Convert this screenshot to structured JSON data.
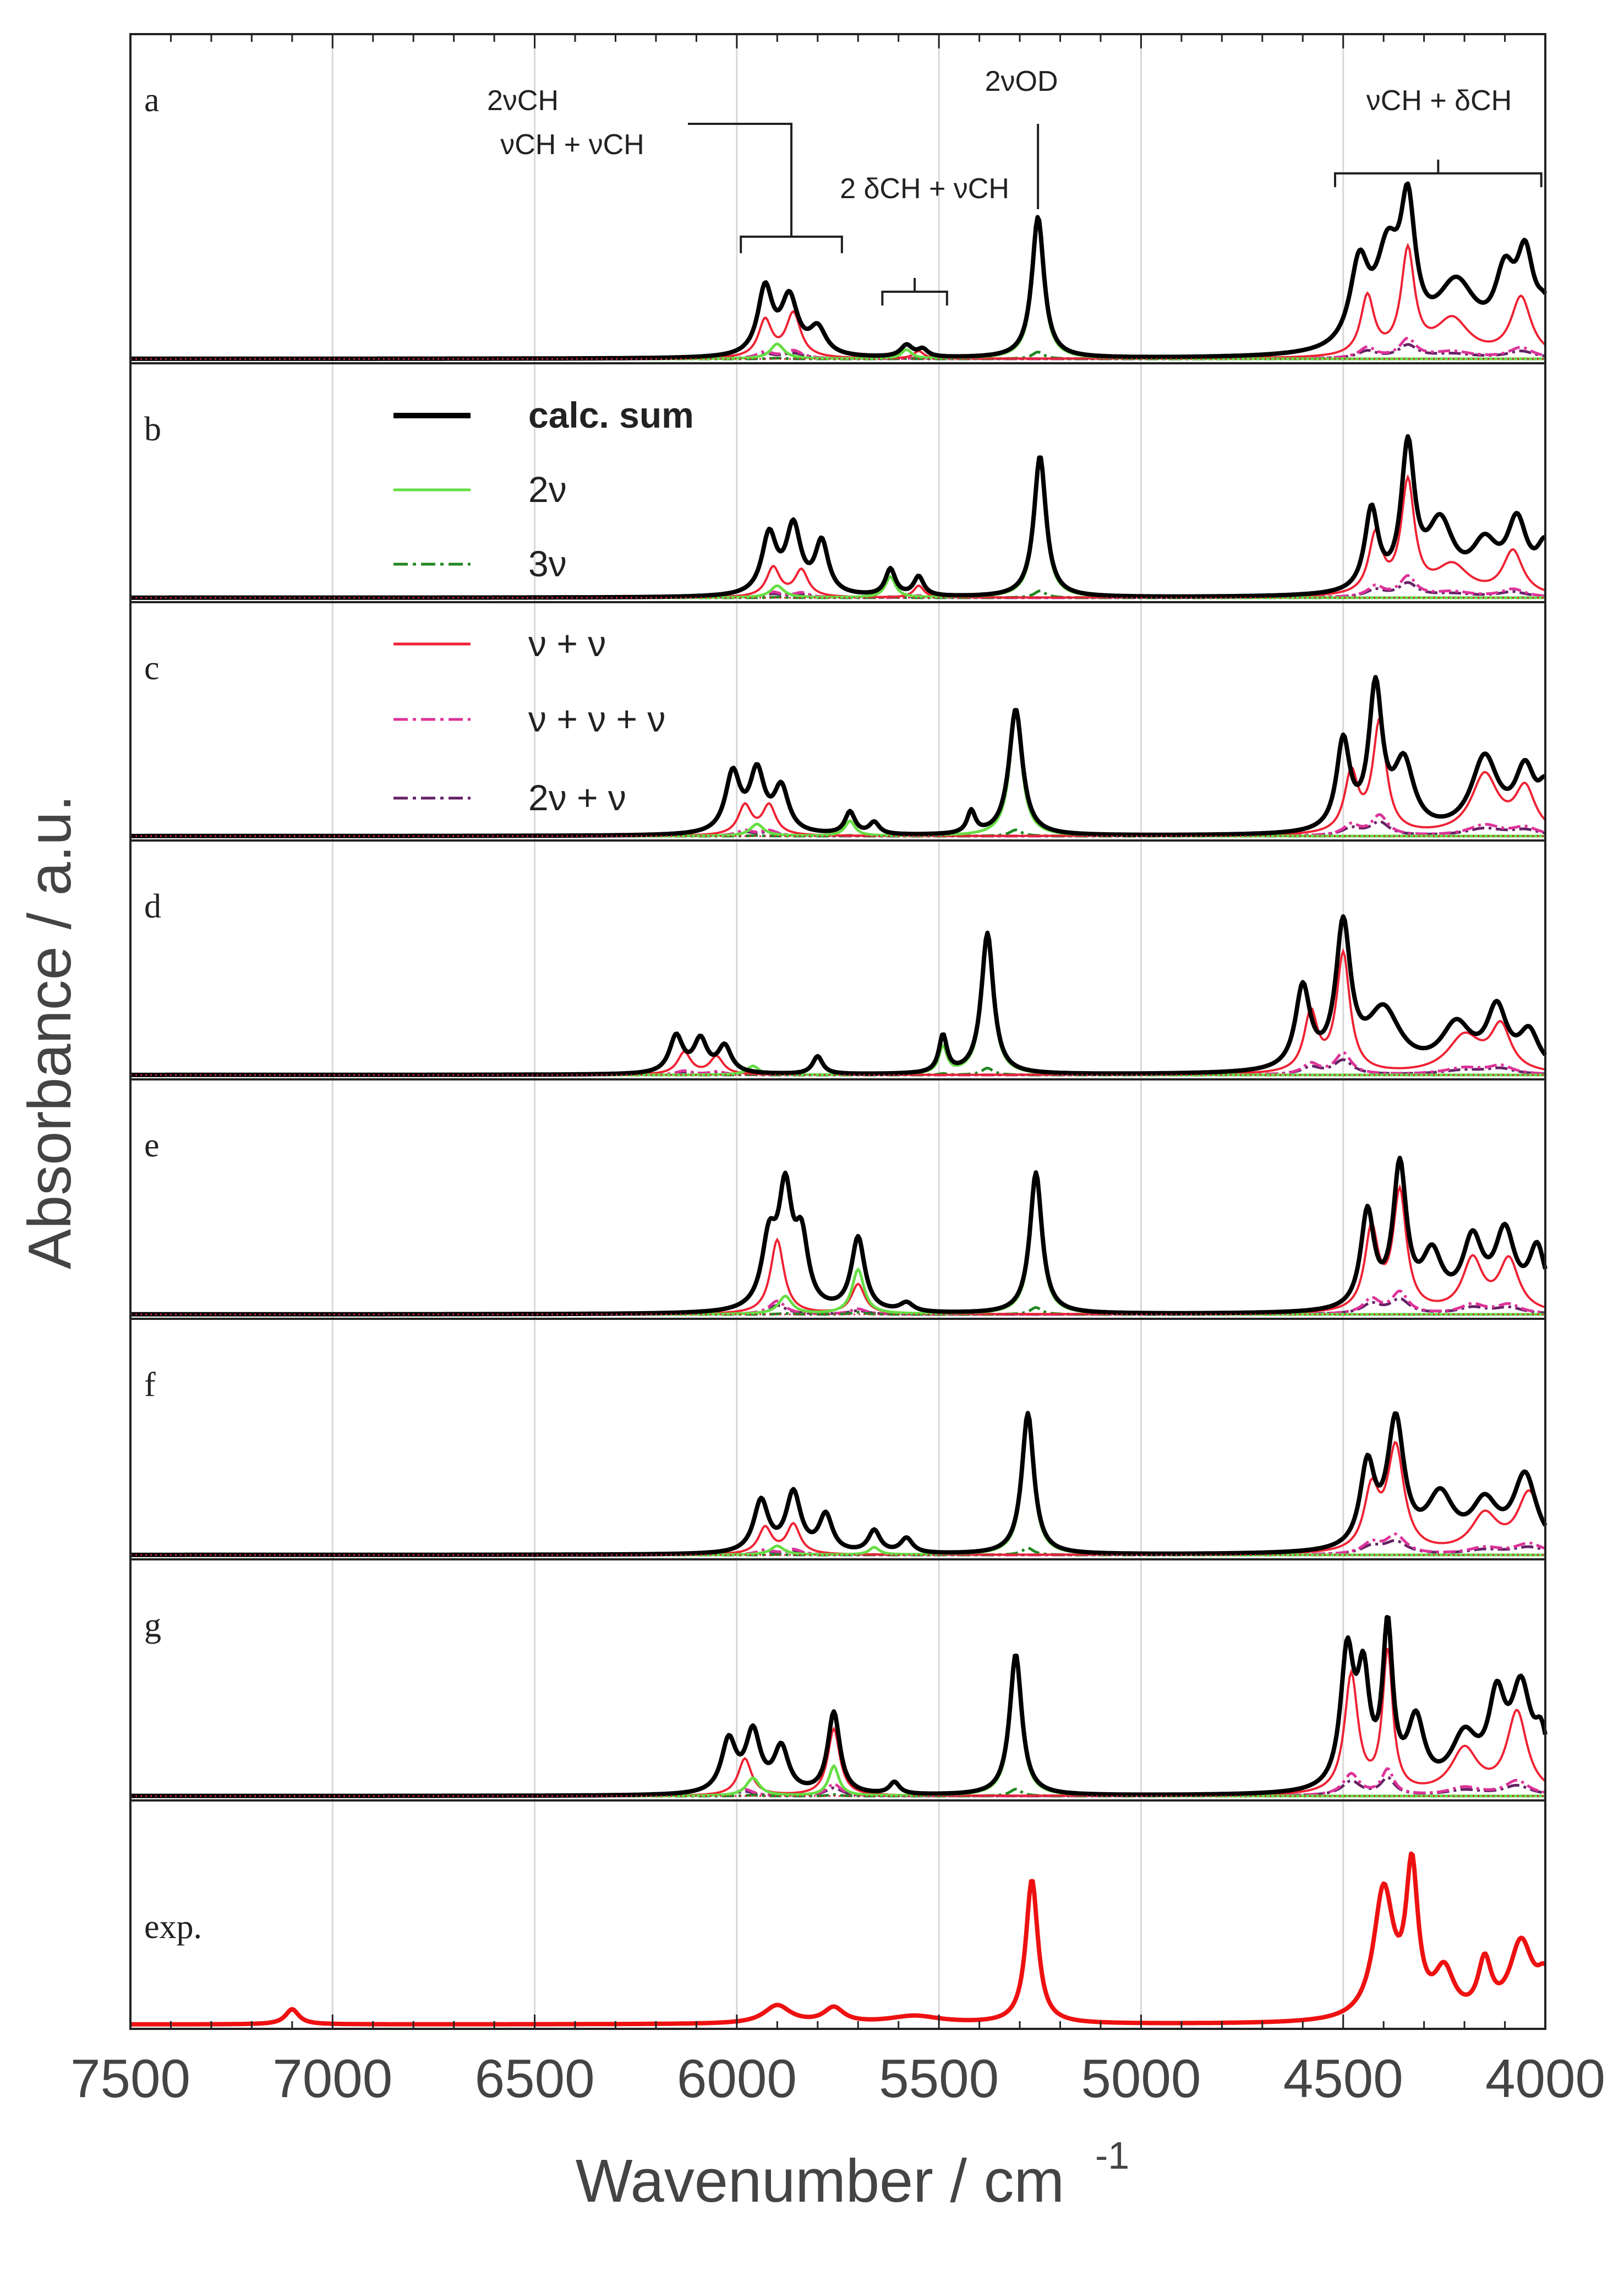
{
  "chart_data": {
    "type": "line",
    "title": "",
    "xlabel": "Wavenumber / cm",
    "xlabel_sup": "-1",
    "ylabel": "Absorbance / a.u.",
    "xlim": [
      7500,
      4000
    ],
    "x_tick_labels": [
      "7500",
      "7000",
      "6500",
      "6000",
      "5500",
      "5000",
      "4500",
      "4000"
    ],
    "x_ticks": [
      7500,
      7000,
      6500,
      6000,
      5500,
      5000,
      4500,
      4000
    ],
    "grid": true,
    "legend": {
      "position": "upper-left (inside panel b-c)",
      "entries": [
        {
          "label": "calc. sum",
          "color": "#000000",
          "style": "solid-thick"
        },
        {
          "label": "2ν",
          "color": "#66dd44",
          "style": "solid"
        },
        {
          "label": "3ν",
          "color": "#228822",
          "style": "dashdot"
        },
        {
          "label": "ν + ν",
          "color": "#ee2233",
          "style": "solid"
        },
        {
          "label": "ν + ν + ν",
          "color": "#dd3399",
          "style": "dashdot"
        },
        {
          "label": "2ν + ν",
          "color": "#662266",
          "style": "dashdot"
        }
      ]
    },
    "annotations": [
      {
        "lines": [
          "2νCH",
          "νCH + νCH"
        ],
        "range_cm": [
          5990,
          5740
        ]
      },
      {
        "lines": [
          "2 δCH + νCH"
        ],
        "range_cm": [
          5640,
          5480
        ]
      },
      {
        "lines": [
          "2νOD"
        ],
        "range_cm": [
          5255,
          5255
        ]
      },
      {
        "lines": [
          "νCH + δCH"
        ],
        "range_cm": [
          4520,
          4010
        ]
      }
    ],
    "panels": [
      {
        "label": "a",
        "sum_peaks": [
          [
            5930,
            0.45,
            22
          ],
          [
            5870,
            0.38,
            25
          ],
          [
            5800,
            0.18,
            25
          ],
          [
            5580,
            0.08,
            18
          ],
          [
            5540,
            0.05,
            15
          ],
          [
            5255,
            0.95,
            18
          ],
          [
            4460,
            0.55,
            28
          ],
          [
            4390,
            0.6,
            35
          ],
          [
            4340,
            0.85,
            22
          ],
          [
            4220,
            0.45,
            60
          ],
          [
            4100,
            0.45,
            30
          ],
          [
            4050,
            0.55,
            25
          ],
          [
            4000,
            0.25,
            30
          ]
        ],
        "combo_peaks": [
          [
            5930,
            0.25,
            20
          ],
          [
            5860,
            0.3,
            22
          ],
          [
            5550,
            0.05,
            15
          ],
          [
            4440,
            0.4,
            20
          ],
          [
            4340,
            0.7,
            20
          ],
          [
            4230,
            0.25,
            50
          ],
          [
            4060,
            0.4,
            30
          ]
        ],
        "ov2_peaks": [
          [
            5255,
            0.93,
            17
          ],
          [
            5580,
            0.06,
            15
          ],
          [
            5900,
            0.1,
            20
          ]
        ]
      },
      {
        "label": "b",
        "sum_peaks": [
          [
            5920,
            0.4,
            22
          ],
          [
            5860,
            0.45,
            22
          ],
          [
            5790,
            0.35,
            20
          ],
          [
            5620,
            0.18,
            15
          ],
          [
            5550,
            0.13,
            15
          ],
          [
            5250,
            0.95,
            18
          ],
          [
            4430,
            0.55,
            20
          ],
          [
            4340,
            0.95,
            20
          ],
          [
            4260,
            0.45,
            40
          ],
          [
            4150,
            0.3,
            40
          ],
          [
            4070,
            0.45,
            30
          ],
          [
            4000,
            0.3,
            25
          ]
        ],
        "combo_peaks": [
          [
            5910,
            0.2,
            20
          ],
          [
            5840,
            0.18,
            20
          ],
          [
            5550,
            0.08,
            15
          ],
          [
            4420,
            0.4,
            20
          ],
          [
            4340,
            0.75,
            20
          ],
          [
            4230,
            0.2,
            50
          ],
          [
            4080,
            0.3,
            30
          ]
        ],
        "ov2_peaks": [
          [
            5250,
            0.93,
            17
          ],
          [
            5620,
            0.14,
            15
          ],
          [
            5900,
            0.08,
            20
          ]
        ]
      },
      {
        "label": "c",
        "sum_peaks": [
          [
            6010,
            0.4,
            22
          ],
          [
            5950,
            0.4,
            22
          ],
          [
            5890,
            0.3,
            22
          ],
          [
            5720,
            0.15,
            15
          ],
          [
            5660,
            0.08,
            15
          ],
          [
            5420,
            0.15,
            12
          ],
          [
            5310,
            0.85,
            20
          ],
          [
            4500,
            0.6,
            20
          ],
          [
            4420,
            0.95,
            20
          ],
          [
            4350,
            0.45,
            30
          ],
          [
            4150,
            0.5,
            40
          ],
          [
            4050,
            0.4,
            30
          ],
          [
            4000,
            0.25,
            20
          ]
        ],
        "combo_peaks": [
          [
            5980,
            0.2,
            20
          ],
          [
            5920,
            0.2,
            20
          ],
          [
            4480,
            0.4,
            20
          ],
          [
            4410,
            0.75,
            20
          ],
          [
            4150,
            0.4,
            40
          ],
          [
            4050,
            0.3,
            30
          ]
        ],
        "ov2_peaks": [
          [
            5310,
            0.83,
            18
          ],
          [
            5720,
            0.1,
            15
          ],
          [
            5950,
            0.08,
            20
          ]
        ]
      },
      {
        "label": "d",
        "sum_peaks": [
          [
            6150,
            0.25,
            20
          ],
          [
            6090,
            0.22,
            20
          ],
          [
            6030,
            0.18,
            20
          ],
          [
            5800,
            0.12,
            15
          ],
          [
            5490,
            0.25,
            12
          ],
          [
            5380,
            0.95,
            18
          ],
          [
            4600,
            0.55,
            22
          ],
          [
            4500,
            0.95,
            22
          ],
          [
            4400,
            0.4,
            50
          ],
          [
            4220,
            0.3,
            45
          ],
          [
            4120,
            0.4,
            30
          ],
          [
            4040,
            0.25,
            30
          ]
        ],
        "combo_peaks": [
          [
            6130,
            0.15,
            20
          ],
          [
            6050,
            0.12,
            20
          ],
          [
            4580,
            0.4,
            20
          ],
          [
            4500,
            0.8,
            20
          ],
          [
            4200,
            0.25,
            50
          ],
          [
            4110,
            0.3,
            30
          ]
        ],
        "ov2_peaks": [
          [
            5380,
            0.93,
            17
          ],
          [
            5490,
            0.18,
            12
          ],
          [
            5960,
            0.06,
            18
          ]
        ]
      },
      {
        "label": "e",
        "sum_peaks": [
          [
            5920,
            0.45,
            22
          ],
          [
            5880,
            0.75,
            20
          ],
          [
            5840,
            0.45,
            20
          ],
          [
            5700,
            0.5,
            20
          ],
          [
            5580,
            0.06,
            20
          ],
          [
            5260,
            0.95,
            18
          ],
          [
            4440,
            0.65,
            20
          ],
          [
            4360,
            0.95,
            20
          ],
          [
            4280,
            0.35,
            30
          ],
          [
            4180,
            0.45,
            30
          ],
          [
            4100,
            0.5,
            30
          ],
          [
            4020,
            0.4,
            25
          ]
        ],
        "combo_peaks": [
          [
            5900,
            0.5,
            20
          ],
          [
            5700,
            0.2,
            20
          ],
          [
            4430,
            0.55,
            20
          ],
          [
            4360,
            0.8,
            20
          ],
          [
            4180,
            0.35,
            30
          ],
          [
            4090,
            0.35,
            30
          ]
        ],
        "ov2_peaks": [
          [
            5260,
            0.93,
            17
          ],
          [
            5700,
            0.3,
            18
          ],
          [
            5880,
            0.12,
            20
          ]
        ]
      },
      {
        "label": "f",
        "sum_peaks": [
          [
            5940,
            0.35,
            22
          ],
          [
            5860,
            0.4,
            22
          ],
          [
            5780,
            0.25,
            20
          ],
          [
            5660,
            0.15,
            18
          ],
          [
            5580,
            0.1,
            18
          ],
          [
            5280,
            0.95,
            18
          ],
          [
            4440,
            0.55,
            22
          ],
          [
            4370,
            0.85,
            25
          ],
          [
            4260,
            0.35,
            40
          ],
          [
            4150,
            0.3,
            40
          ],
          [
            4050,
            0.5,
            35
          ]
        ],
        "combo_peaks": [
          [
            5930,
            0.18,
            20
          ],
          [
            5860,
            0.2,
            20
          ],
          [
            4430,
            0.4,
            22
          ],
          [
            4370,
            0.7,
            25
          ],
          [
            4150,
            0.25,
            40
          ],
          [
            4040,
            0.4,
            35
          ]
        ],
        "ov2_peaks": [
          [
            5280,
            0.93,
            17
          ],
          [
            5660,
            0.05,
            15
          ],
          [
            5900,
            0.06,
            20
          ]
        ]
      },
      {
        "label": "g",
        "sum_peaks": [
          [
            6020,
            0.35,
            22
          ],
          [
            5960,
            0.4,
            22
          ],
          [
            5890,
            0.3,
            22
          ],
          [
            5760,
            0.55,
            18
          ],
          [
            5610,
            0.08,
            15
          ],
          [
            5310,
            0.95,
            18
          ],
          [
            4490,
            0.9,
            20
          ],
          [
            4450,
            0.7,
            18
          ],
          [
            4390,
            1.05,
            15
          ],
          [
            4320,
            0.45,
            25
          ],
          [
            4200,
            0.35,
            40
          ],
          [
            4120,
            0.55,
            25
          ],
          [
            4060,
            0.65,
            30
          ],
          [
            4010,
            0.3,
            20
          ]
        ],
        "combo_peaks": [
          [
            5980,
            0.25,
            20
          ],
          [
            5760,
            0.45,
            18
          ],
          [
            4480,
            0.8,
            20
          ],
          [
            4390,
            0.95,
            15
          ],
          [
            4200,
            0.3,
            40
          ],
          [
            4070,
            0.55,
            30
          ]
        ],
        "ov2_peaks": [
          [
            5310,
            0.93,
            17
          ],
          [
            5760,
            0.2,
            15
          ],
          [
            5960,
            0.12,
            20
          ]
        ]
      },
      {
        "label": "exp.",
        "exp_peaks": [
          [
            7100,
            0.1,
            20
          ],
          [
            5900,
            0.12,
            40
          ],
          [
            5760,
            0.1,
            30
          ],
          [
            5560,
            0.05,
            80
          ],
          [
            5270,
            0.95,
            18
          ],
          [
            4400,
            0.85,
            30
          ],
          [
            4330,
            0.95,
            18
          ],
          [
            4250,
            0.3,
            30
          ],
          [
            4150,
            0.35,
            20
          ],
          [
            4060,
            0.5,
            35
          ],
          [
            4000,
            0.25,
            25
          ]
        ]
      }
    ]
  }
}
